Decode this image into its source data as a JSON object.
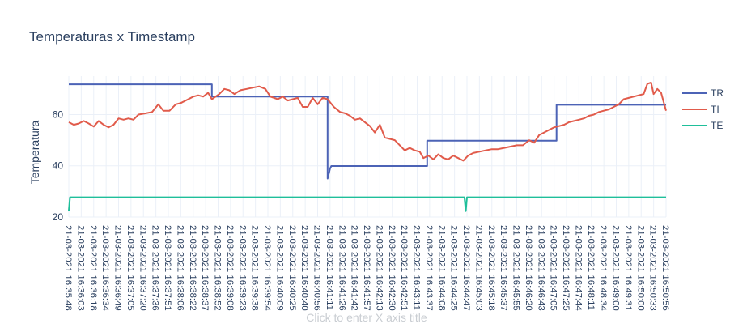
{
  "chart_data": {
    "type": "line",
    "title": "Temperaturas x Timestamp",
    "ylabel": "Temperatura",
    "xlabel_placeholder": "Click to enter X axis title",
    "ylim": [
      20,
      75
    ],
    "yticks": [
      20,
      40,
      60
    ],
    "x_tick_labels": [
      "21-03-2021 16:35:48",
      "21-03-2021 16:36:03",
      "21-03-2021 16:36:18",
      "21-03-2021 16:36:34",
      "21-03-2021 16:36:49",
      "21-03-2021 16:37:05",
      "21-03-2021 16:37:20",
      "21-03-2021 16:37:36",
      "21-03-2021 16:37:51",
      "21-03-2021 16:38:06",
      "21-03-2021 16:38:22",
      "21-03-2021 16:38:37",
      "21-03-2021 16:38:52",
      "21-03-2021 16:39:08",
      "21-03-2021 16:39:23",
      "21-03-2021 16:39:38",
      "21-03-2021 16:39:54",
      "21-03-2021 16:40:09",
      "21-03-2021 16:40:25",
      "21-03-2021 16:40:40",
      "21-03-2021 16:40:56",
      "21-03-2021 16:41:11",
      "21-03-2021 16:41:26",
      "21-03-2021 16:41:42",
      "21-03-2021 16:41:57",
      "21-03-2021 16:42:13",
      "21-03-2021 16:42:30",
      "21-03-2021 16:42:51",
      "21-03-2021 16:43:11",
      "21-03-2021 16:43:37",
      "21-03-2021 16:44:08",
      "21-03-2021 16:44:25",
      "21-03-2021 16:44:47",
      "21-03-2021 16:45:03",
      "21-03-2021 16:45:18",
      "21-03-2021 16:45:37",
      "21-03-2021 16:45:55",
      "21-03-2021 16:46:20",
      "21-03-2021 16:46:43",
      "21-03-2021 16:47:05",
      "21-03-2021 16:47:25",
      "21-03-2021 16:47:44",
      "21-03-2021 16:48:11",
      "21-03-2021 16:48:34",
      "21-03-2021 16:49:00",
      "21-03-2021 16:49:31",
      "21-03-2021 16:50:00",
      "21-03-2021 16:50:33",
      "21-03-2021 16:50:56"
    ],
    "legend_position": "top-right",
    "series": [
      {
        "name": "TR",
        "color": "#4c63b6",
        "points": [
          [
            0,
            71.8
          ],
          [
            11.5,
            71.8
          ],
          [
            11.5,
            67
          ],
          [
            20.8,
            67
          ],
          [
            20.8,
            35
          ],
          [
            21,
            39
          ],
          [
            21.1,
            39.9
          ],
          [
            28.8,
            39.9
          ],
          [
            28.8,
            49.8
          ],
          [
            39.2,
            49.8
          ],
          [
            39.2,
            63.8
          ],
          [
            48,
            63.8
          ]
        ]
      },
      {
        "name": "TI",
        "color": "#e15b4b",
        "points": [
          [
            0,
            57
          ],
          [
            0.4,
            56
          ],
          [
            0.8,
            56.5
          ],
          [
            1.2,
            57.5
          ],
          [
            1.6,
            56.5
          ],
          [
            2,
            55.3
          ],
          [
            2.4,
            57.5
          ],
          [
            2.8,
            56
          ],
          [
            3.2,
            55
          ],
          [
            3.6,
            56
          ],
          [
            4,
            58.5
          ],
          [
            4.4,
            58
          ],
          [
            4.8,
            58.5
          ],
          [
            5.2,
            58
          ],
          [
            5.6,
            60
          ],
          [
            6.2,
            60.5
          ],
          [
            6.7,
            61
          ],
          [
            7.2,
            64
          ],
          [
            7.6,
            61.5
          ],
          [
            8.1,
            61.5
          ],
          [
            8.6,
            64
          ],
          [
            9,
            64.5
          ],
          [
            9.4,
            65.5
          ],
          [
            10,
            67
          ],
          [
            10.4,
            67.5
          ],
          [
            10.8,
            67
          ],
          [
            11.2,
            68.5
          ],
          [
            11.5,
            66
          ],
          [
            11.8,
            67
          ],
          [
            12.1,
            68
          ],
          [
            12.5,
            70
          ],
          [
            12.9,
            69.5
          ],
          [
            13.3,
            68
          ],
          [
            13.8,
            69.5
          ],
          [
            14.3,
            70
          ],
          [
            14.8,
            70.5
          ],
          [
            15.3,
            71
          ],
          [
            15.8,
            70
          ],
          [
            16.2,
            67
          ],
          [
            16.8,
            66
          ],
          [
            17.2,
            67
          ],
          [
            17.6,
            65.5
          ],
          [
            18,
            66
          ],
          [
            18.4,
            66.5
          ],
          [
            18.8,
            63
          ],
          [
            19.2,
            63
          ],
          [
            19.6,
            66.5
          ],
          [
            20,
            64
          ],
          [
            20.4,
            66.5
          ],
          [
            20.8,
            66
          ],
          [
            21.3,
            63
          ],
          [
            21.8,
            61
          ],
          [
            22.2,
            60.5
          ],
          [
            22.6,
            59.5
          ],
          [
            23,
            58
          ],
          [
            23.4,
            58.5
          ],
          [
            23.8,
            57
          ],
          [
            24.2,
            55.5
          ],
          [
            24.6,
            53
          ],
          [
            25,
            56
          ],
          [
            25.4,
            51
          ],
          [
            25.8,
            50.5
          ],
          [
            26.2,
            50
          ],
          [
            26.6,
            48
          ],
          [
            27,
            46
          ],
          [
            27.4,
            47
          ],
          [
            27.8,
            46
          ],
          [
            28.2,
            45.5
          ],
          [
            28.5,
            43
          ],
          [
            28.9,
            44
          ],
          [
            29.3,
            42.5
          ],
          [
            29.7,
            44.5
          ],
          [
            30.1,
            43
          ],
          [
            30.5,
            42.5
          ],
          [
            30.9,
            44
          ],
          [
            31.3,
            43
          ],
          [
            31.7,
            42
          ],
          [
            32.1,
            44
          ],
          [
            32.5,
            45
          ],
          [
            33,
            45.5
          ],
          [
            33.5,
            46
          ],
          [
            34,
            46.5
          ],
          [
            34.5,
            46.5
          ],
          [
            35,
            47
          ],
          [
            35.5,
            47.5
          ],
          [
            36,
            48
          ],
          [
            36.5,
            48
          ],
          [
            37,
            50
          ],
          [
            37.4,
            49
          ],
          [
            37.8,
            52
          ],
          [
            38.2,
            53
          ],
          [
            38.6,
            54
          ],
          [
            39,
            55
          ],
          [
            39.4,
            55.5
          ],
          [
            39.8,
            56
          ],
          [
            40.2,
            57
          ],
          [
            40.6,
            57.5
          ],
          [
            41,
            58
          ],
          [
            41.4,
            58.5
          ],
          [
            41.8,
            59.5
          ],
          [
            42.2,
            60
          ],
          [
            42.6,
            61
          ],
          [
            43,
            61.5
          ],
          [
            43.4,
            62
          ],
          [
            43.8,
            63
          ],
          [
            44.2,
            64
          ],
          [
            44.6,
            66
          ],
          [
            45,
            66.5
          ],
          [
            45.4,
            67
          ],
          [
            45.8,
            67.5
          ],
          [
            46.2,
            68
          ],
          [
            46.5,
            72
          ],
          [
            46.8,
            72.5
          ],
          [
            47,
            68
          ],
          [
            47.3,
            70
          ],
          [
            47.6,
            68.5
          ],
          [
            47.8,
            65
          ],
          [
            48,
            61.5
          ]
        ]
      },
      {
        "name": "TE",
        "color": "#1fbf9a",
        "points": [
          [
            0,
            22.5
          ],
          [
            0.1,
            27.7
          ],
          [
            31.8,
            27.7
          ],
          [
            31.9,
            22.3
          ],
          [
            32,
            27.7
          ],
          [
            48,
            27.7
          ]
        ]
      }
    ],
    "grid": true
  }
}
